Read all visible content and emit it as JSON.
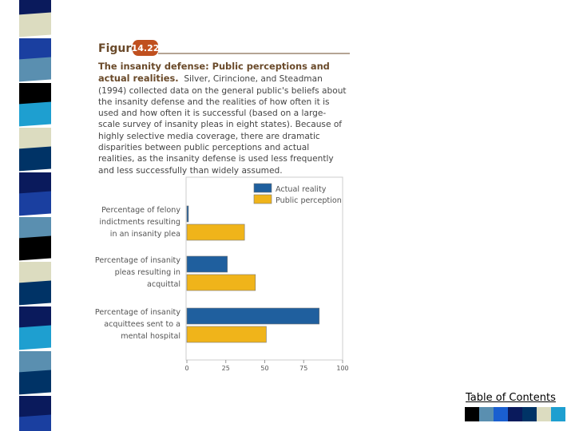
{
  "figure": {
    "label": "Figure",
    "number": "14.22",
    "title": "The insanity defense: Public perceptions and actual realities.",
    "caption": "Silver, Cirincione, and Steadman (1994) collected data on the general public's beliefs about the insanity defense and the realities of how often it is used and how often it is successful (based on a large-scale survey of insanity pleas in eight states). Because of highly selective media coverage, there are dramatic disparities between public perceptions and actual realities, as the insanity defense is used less frequently and less successfully than widely assumed."
  },
  "chart_data": {
    "type": "bar",
    "orientation": "horizontal",
    "categories": [
      "Percentage of felony indictments resulting in an insanity plea",
      "Percentage of insanity pleas resulting in acquittal",
      "Percentage of insanity acquittees sent to a mental hospital"
    ],
    "series": [
      {
        "name": "Actual reality",
        "color": "#1f5f9e",
        "values": [
          1,
          26,
          85
        ]
      },
      {
        "name": "Public perception",
        "color": "#f0b41a",
        "values": [
          37,
          44,
          51
        ]
      }
    ],
    "xlim": [
      0,
      100
    ],
    "xticks": [
      0,
      25,
      50,
      75,
      100
    ],
    "legend": "top-right"
  },
  "nav": {
    "link": "Table of Contents"
  }
}
